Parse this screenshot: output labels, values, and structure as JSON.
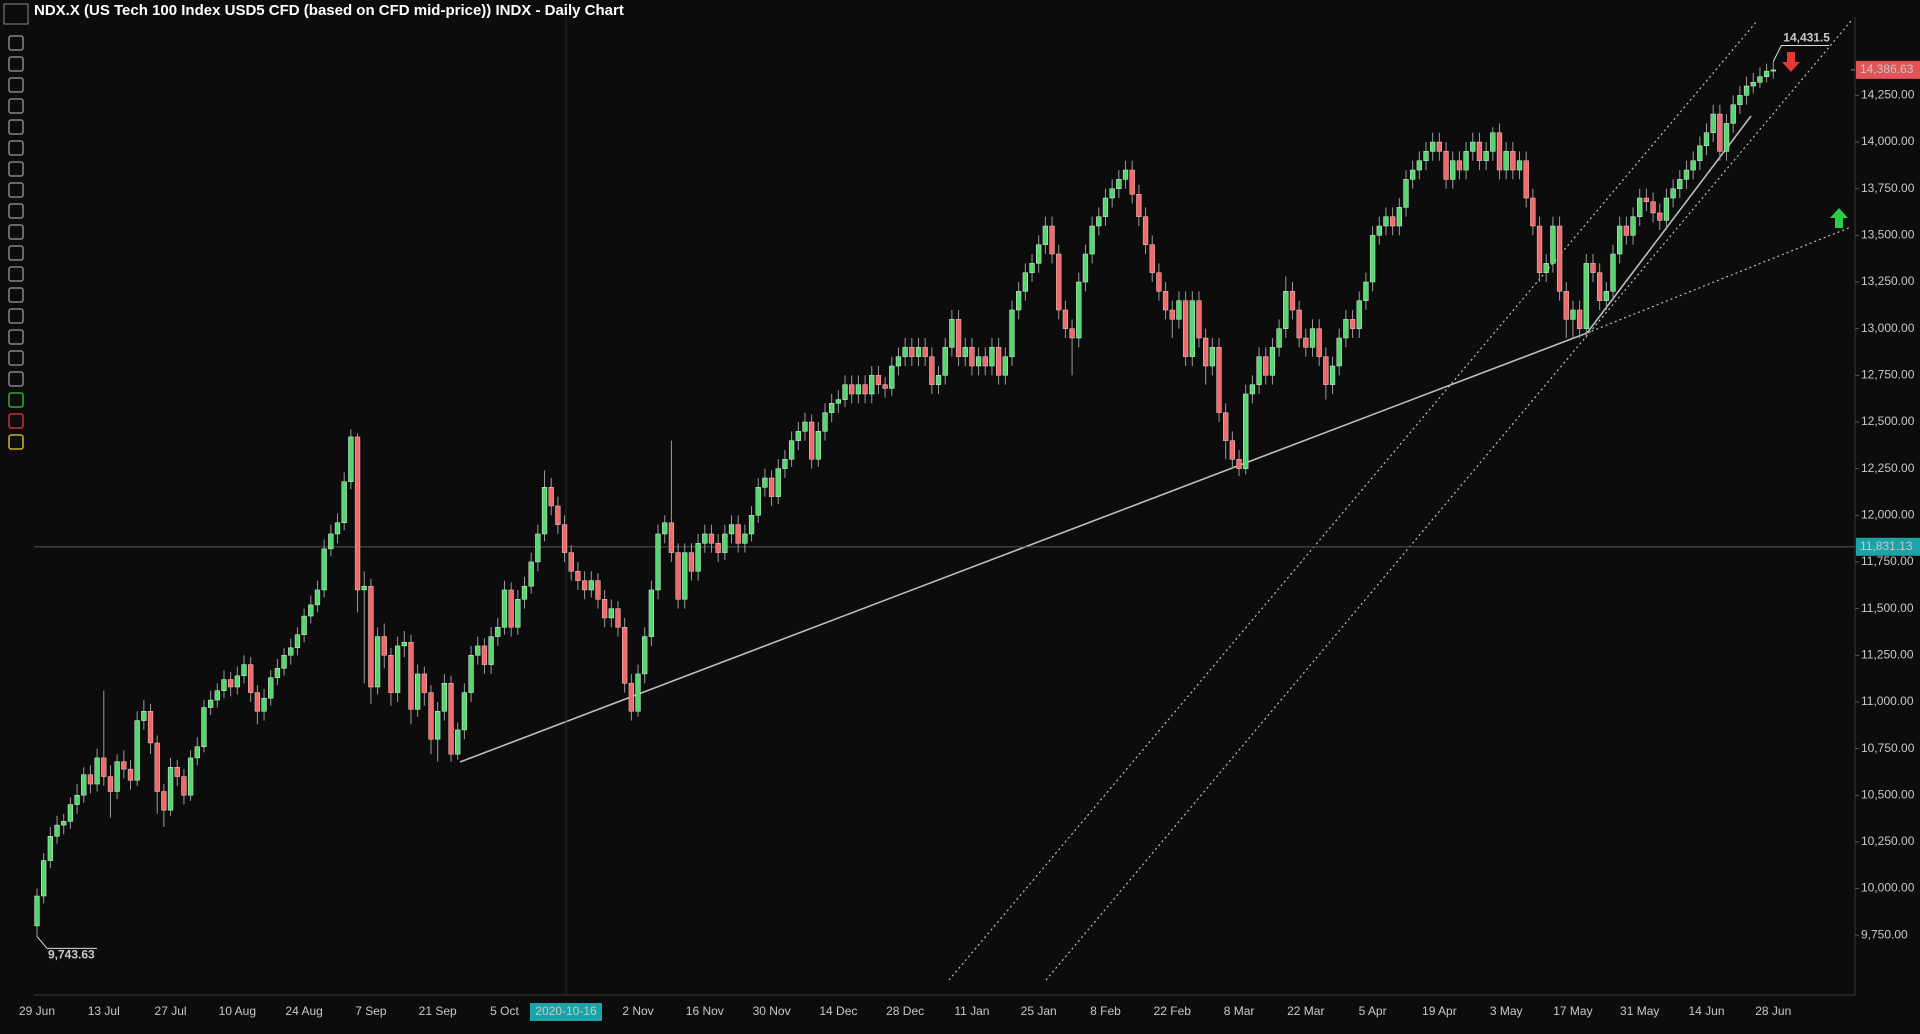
{
  "chart_data": {
    "type": "candlestick",
    "title": "NDX.X (US Tech 100 Index USD5 CFD (based on CFD mid-price)) INDX - Daily Chart",
    "categories": [
      "29 Jun",
      null,
      null,
      null,
      null,
      null,
      null,
      null,
      null,
      null,
      "13 Jul",
      null,
      null,
      null,
      null,
      null,
      null,
      null,
      null,
      null,
      "27 Jul",
      null,
      null,
      null,
      null,
      null,
      null,
      null,
      null,
      null,
      "10 Aug",
      null,
      null,
      null,
      null,
      null,
      null,
      null,
      null,
      null,
      "24 Aug",
      null,
      null,
      null,
      null,
      null,
      null,
      null,
      null,
      null,
      "7 Sep",
      null,
      null,
      null,
      null,
      null,
      null,
      null,
      null,
      null,
      "21 Sep",
      null,
      null,
      null,
      null,
      null,
      null,
      null,
      null,
      null,
      "5 Oct",
      null,
      null,
      null,
      null,
      null,
      null,
      null,
      null,
      null,
      null,
      null,
      null,
      null,
      null,
      null,
      null,
      null,
      null,
      null,
      "2 Nov",
      null,
      null,
      null,
      null,
      null,
      null,
      null,
      null,
      null,
      "16 Nov",
      null,
      null,
      null,
      null,
      null,
      null,
      null,
      null,
      null,
      "30 Nov",
      null,
      null,
      null,
      null,
      null,
      null,
      null,
      null,
      null,
      "14 Dec",
      null,
      null,
      null,
      null,
      null,
      null,
      null,
      null,
      null,
      "28 Dec",
      null,
      null,
      null,
      null,
      null,
      null,
      null,
      null,
      null,
      "11 Jan",
      null,
      null,
      null,
      null,
      null,
      null,
      null,
      null,
      null,
      "25 Jan",
      null,
      null,
      null,
      null,
      null,
      null,
      null,
      null,
      null,
      "8 Feb",
      null,
      null,
      null,
      null,
      null,
      null,
      null,
      null,
      null,
      "22 Feb",
      null,
      null,
      null,
      null,
      null,
      null,
      null,
      null,
      null,
      "8 Mar",
      null,
      null,
      null,
      null,
      null,
      null,
      null,
      null,
      null,
      "22 Mar",
      null,
      null,
      null,
      null,
      null,
      null,
      null,
      null,
      null,
      "5 Apr",
      null,
      null,
      null,
      null,
      null,
      null,
      null,
      null,
      null,
      "19 Apr",
      null,
      null,
      null,
      null,
      null,
      null,
      null,
      null,
      null,
      "3 May",
      null,
      null,
      null,
      null,
      null,
      null,
      null,
      null,
      null,
      "17 May",
      null,
      null,
      null,
      null,
      null,
      null,
      null,
      null,
      null,
      "31 May",
      null,
      null,
      null,
      null,
      null,
      null,
      null,
      null,
      null,
      "14 Jun",
      null,
      null,
      null,
      null,
      null,
      null,
      null,
      null,
      null,
      "28 Jun"
    ],
    "open": [
      9800,
      9960,
      10150,
      10280,
      10340,
      10360,
      10450,
      10500,
      10610,
      10560,
      10700,
      10600,
      10520,
      10680,
      10640,
      10580,
      10900,
      10950,
      10780,
      10520,
      10420,
      10650,
      10600,
      10500,
      10700,
      10760,
      10970,
      11010,
      11060,
      11120,
      11080,
      11140,
      11200,
      11050,
      10950,
      11020,
      11130,
      11180,
      11250,
      11290,
      11360,
      11460,
      11520,
      11600,
      11820,
      11900,
      11960,
      12180,
      12420,
      11600,
      11620,
      11080,
      11350,
      11250,
      11050,
      11300,
      11320,
      10960,
      11150,
      11050,
      10800,
      10950,
      11100,
      10720,
      10850,
      11050,
      11250,
      11300,
      11200,
      11350,
      11400,
      11600,
      11400,
      11550,
      11620,
      11750,
      11900,
      12150,
      12050,
      11950,
      11800,
      11700,
      11650,
      11600,
      11650,
      11550,
      11450,
      11500,
      11400,
      11100,
      10950,
      11150,
      11350,
      11600,
      11900,
      11960,
      11800,
      11550,
      11800,
      11700,
      11850,
      11900,
      11850,
      11800,
      11900,
      11950,
      11850,
      11900,
      12000,
      12150,
      12200,
      12100,
      12250,
      12300,
      12400,
      12450,
      12500,
      12300,
      12450,
      12550,
      12600,
      12620,
      12700,
      12650,
      12700,
      12650,
      12750,
      12700,
      12680,
      12800,
      12850,
      12900,
      12850,
      12900,
      12850,
      12700,
      12750,
      12900,
      13050,
      12850,
      12900,
      12800,
      12850,
      12800,
      12900,
      12750,
      12850,
      13100,
      13200,
      13300,
      13350,
      13450,
      13550,
      13400,
      13100,
      13000,
      12950,
      13250,
      13400,
      13550,
      13600,
      13700,
      13750,
      13800,
      13850,
      13720,
      13600,
      13450,
      13300,
      13200,
      13100,
      13050,
      13150,
      12850,
      13150,
      12950,
      12800,
      12900,
      12550,
      12400,
      12300,
      12250,
      12650,
      12700,
      12850,
      12750,
      12900,
      13000,
      13200,
      13100,
      12950,
      12900,
      13000,
      12850,
      12700,
      12800,
      12950,
      13050,
      13000,
      13150,
      13250,
      13500,
      13550,
      13600,
      13550,
      13650,
      13800,
      13850,
      13900,
      13950,
      14000,
      13950,
      13800,
      13900,
      13850,
      13950,
      14000,
      13900,
      13950,
      14050,
      13850,
      13950,
      13850,
      13900,
      13700,
      13550,
      13300,
      13350,
      13550,
      13200,
      13050,
      13100,
      13000,
      13350,
      13300,
      13150,
      13200,
      13400,
      13550,
      13500,
      13600,
      13700,
      13680,
      13620,
      13580,
      13700,
      13750,
      13800,
      13850,
      13900,
      13980,
      14050,
      14150,
      13950,
      14100,
      14200,
      14250,
      14300,
      14320,
      14350,
      14380
    ],
    "high": [
      10000,
      10190,
      10330,
      10390,
      10400,
      10490,
      10560,
      10650,
      10660,
      10750,
      11060,
      10660,
      10720,
      10740,
      10690,
      10950,
      11010,
      10990,
      10820,
      10560,
      10700,
      10690,
      10640,
      10740,
      10810,
      11010,
      11060,
      11100,
      11170,
      11160,
      11190,
      11250,
      11240,
      11090,
      11070,
      11170,
      11230,
      11290,
      11340,
      11400,
      11500,
      11570,
      11650,
      11870,
      11950,
      12010,
      12230,
      12460,
      12440,
      11700,
      11660,
      11400,
      11420,
      11290,
      11350,
      11380,
      11360,
      11200,
      11190,
      11090,
      11000,
      11150,
      11140,
      10890,
      11100,
      11300,
      11350,
      11340,
      11400,
      11450,
      11650,
      11640,
      11600,
      11670,
      11800,
      11950,
      12240,
      12200,
      12100,
      12000,
      11840,
      11750,
      11700,
      11700,
      11690,
      11600,
      11550,
      11540,
      11450,
      11150,
      11200,
      11400,
      11650,
      11950,
      12000,
      12400,
      11850,
      11850,
      11850,
      11900,
      11950,
      11950,
      11900,
      11950,
      12000,
      12000,
      11950,
      12050,
      12200,
      12250,
      12240,
      12300,
      12350,
      12450,
      12500,
      12550,
      12540,
      12500,
      12600,
      12650,
      12670,
      12750,
      12750,
      12750,
      12750,
      12800,
      12800,
      12740,
      12850,
      12900,
      12950,
      12950,
      12950,
      12950,
      12900,
      12800,
      12950,
      13100,
      13100,
      12950,
      12950,
      12900,
      12900,
      12950,
      12950,
      12900,
      13150,
      13250,
      13350,
      13400,
      13500,
      13600,
      13600,
      13450,
      13150,
      13050,
      13300,
      13450,
      13600,
      13650,
      13750,
      13800,
      13850,
      13900,
      13900,
      13770,
      13650,
      13500,
      13350,
      13250,
      13150,
      13200,
      13200,
      13200,
      13200,
      13000,
      12950,
      12950,
      12600,
      12450,
      12350,
      12700,
      12750,
      12900,
      12900,
      12950,
      13050,
      13280,
      13250,
      13150,
      13000,
      13050,
      13050,
      12900,
      12850,
      13000,
      13100,
      13100,
      13200,
      13300,
      13550,
      13600,
      13650,
      13650,
      13700,
      13850,
      13900,
      13950,
      14000,
      14050,
      14050,
      14000,
      13950,
      13950,
      14000,
      14050,
      14050,
      14000,
      14080,
      14100,
      14000,
      14000,
      13950,
      13950,
      13750,
      13600,
      13400,
      13600,
      13600,
      13250,
      13150,
      13150,
      13400,
      13400,
      13350,
      13250,
      13450,
      13600,
      13600,
      13650,
      13750,
      13750,
      13730,
      13670,
      13750,
      13800,
      13850,
      13900,
      13950,
      14030,
      14100,
      14200,
      14200,
      14150,
      14250,
      14300,
      14350,
      14370,
      14400,
      14420,
      14431.5
    ],
    "low": [
      9743.63,
      9920,
      10110,
      10240,
      10290,
      10320,
      10400,
      10460,
      10510,
      10520,
      10550,
      10380,
      10480,
      10590,
      10530,
      10550,
      10850,
      10720,
      10400,
      10330,
      10390,
      10550,
      10450,
      10470,
      10660,
      10730,
      10930,
      10970,
      11020,
      11030,
      11040,
      11100,
      11000,
      10880,
      10900,
      10980,
      11090,
      11140,
      11200,
      11250,
      11320,
      11420,
      11480,
      11560,
      11780,
      11850,
      11920,
      12140,
      11480,
      11100,
      10990,
      11040,
      11180,
      10980,
      11000,
      11240,
      10880,
      10920,
      10980,
      10720,
      10680,
      10900,
      10680,
      10690,
      10800,
      11000,
      11200,
      11150,
      11150,
      11300,
      11360,
      11350,
      11360,
      11500,
      11580,
      11700,
      11860,
      12000,
      11900,
      11750,
      11650,
      11600,
      11550,
      11560,
      11500,
      11400,
      11400,
      11350,
      11050,
      10900,
      10920,
      11100,
      11300,
      11550,
      11850,
      11750,
      11500,
      11500,
      11650,
      11650,
      11800,
      11800,
      11750,
      11760,
      11850,
      11800,
      11800,
      11860,
      11960,
      12100,
      12050,
      12060,
      12200,
      12260,
      12350,
      12400,
      12250,
      12260,
      12400,
      12500,
      12550,
      12580,
      12600,
      12600,
      12600,
      12600,
      12650,
      12630,
      12640,
      12750,
      12800,
      12800,
      12800,
      12800,
      12650,
      12650,
      12700,
      12850,
      12800,
      12800,
      12750,
      12750,
      12750,
      12750,
      12700,
      12700,
      12800,
      13050,
      13150,
      13250,
      13300,
      13400,
      13350,
      13050,
      12950,
      12750,
      12900,
      13200,
      13350,
      13500,
      13550,
      13650,
      13700,
      13750,
      13670,
      13550,
      13400,
      13250,
      13150,
      13050,
      12950,
      13000,
      12800,
      12800,
      12900,
      12700,
      12750,
      12500,
      12300,
      12250,
      12210,
      12220,
      12600,
      12650,
      12700,
      12700,
      12850,
      12950,
      13050,
      12900,
      12850,
      12850,
      12800,
      12620,
      12650,
      12750,
      12900,
      12950,
      12950,
      13100,
      13200,
      13450,
      13500,
      13500,
      13500,
      13600,
      13750,
      13800,
      13850,
      13900,
      13900,
      13750,
      13750,
      13800,
      13800,
      13900,
      13850,
      13850,
      13900,
      13800,
      13800,
      13800,
      13800,
      13650,
      13500,
      13250,
      13250,
      13300,
      13150,
      12950,
      12950,
      12950,
      12950,
      13250,
      13100,
      13100,
      13150,
      13350,
      13450,
      13450,
      13550,
      13630,
      13570,
      13530,
      13530,
      13650,
      13700,
      13750,
      13800,
      13850,
      13930,
      14000,
      13900,
      13900,
      14050,
      14150,
      14200,
      14260,
      14290,
      14320,
      14340
    ],
    "close": [
      9960,
      10150,
      10280,
      10340,
      10360,
      10450,
      10500,
      10610,
      10560,
      10700,
      10600,
      10520,
      10680,
      10640,
      10580,
      10900,
      10950,
      10780,
      10520,
      10420,
      10650,
      10600,
      10500,
      10700,
      10760,
      10970,
      11010,
      11060,
      11120,
      11080,
      11140,
      11200,
      11050,
      10950,
      11020,
      11130,
      11180,
      11250,
      11290,
      11360,
      11460,
      11520,
      11600,
      11820,
      11900,
      11960,
      12180,
      12420,
      11600,
      11620,
      11080,
      11350,
      11250,
      11050,
      11300,
      11320,
      10960,
      11150,
      11050,
      10800,
      10950,
      11100,
      10720,
      10850,
      11050,
      11250,
      11300,
      11200,
      11350,
      11400,
      11600,
      11400,
      11550,
      11620,
      11750,
      11900,
      12150,
      12050,
      11950,
      11800,
      11700,
      11650,
      11600,
      11650,
      11550,
      11450,
      11500,
      11400,
      11100,
      10950,
      11150,
      11350,
      11600,
      11900,
      11960,
      11800,
      11550,
      11800,
      11700,
      11850,
      11900,
      11850,
      11800,
      11900,
      11950,
      11850,
      11900,
      12000,
      12150,
      12200,
      12100,
      12250,
      12300,
      12400,
      12450,
      12500,
      12300,
      12450,
      12550,
      12600,
      12620,
      12700,
      12650,
      12700,
      12650,
      12750,
      12700,
      12680,
      12800,
      12850,
      12900,
      12850,
      12900,
      12850,
      12700,
      12750,
      12900,
      13050,
      12850,
      12900,
      12800,
      12850,
      12800,
      12900,
      12750,
      12850,
      13100,
      13200,
      13300,
      13350,
      13450,
      13550,
      13400,
      13100,
      13000,
      12950,
      13250,
      13400,
      13550,
      13600,
      13700,
      13750,
      13800,
      13850,
      13720,
      13600,
      13450,
      13300,
      13200,
      13100,
      13050,
      13150,
      12850,
      13150,
      12950,
      12800,
      12900,
      12550,
      12400,
      12300,
      12250,
      12650,
      12700,
      12850,
      12750,
      12900,
      13000,
      13200,
      13100,
      12950,
      12900,
      13000,
      12850,
      12700,
      12800,
      12950,
      13050,
      13000,
      13150,
      13250,
      13500,
      13550,
      13600,
      13550,
      13650,
      13800,
      13850,
      13900,
      13950,
      14000,
      13950,
      13800,
      13900,
      13850,
      13950,
      14000,
      13900,
      13950,
      14050,
      13850,
      13950,
      13850,
      13900,
      13700,
      13550,
      13300,
      13350,
      13550,
      13200,
      13050,
      13100,
      13000,
      13350,
      13300,
      13150,
      13200,
      13400,
      13550,
      13500,
      13600,
      13700,
      13680,
      13620,
      13580,
      13700,
      13750,
      13800,
      13850,
      13900,
      13980,
      14050,
      14150,
      13950,
      14100,
      14200,
      14250,
      14300,
      14320,
      14350,
      14380,
      14386.63
    ],
    "up_color": "#55d66f",
    "down_color": "#ef6b6b",
    "ylim": [
      9435,
      14670
    ],
    "yticks": [
      {
        "value": 9750,
        "label": "9,750.00"
      },
      {
        "value": 10000,
        "label": "10,000.00"
      },
      {
        "value": 10250,
        "label": "10,250.00"
      },
      {
        "value": 10500,
        "label": "10,500.00"
      },
      {
        "value": 10750,
        "label": "10,750.00"
      },
      {
        "value": 11000,
        "label": "11,000.00"
      },
      {
        "value": 11250,
        "label": "11,250.00"
      },
      {
        "value": 11500,
        "label": "11,500.00"
      },
      {
        "value": 11750,
        "label": "11,750.00"
      },
      {
        "value": 12000,
        "label": "12,000.00"
      },
      {
        "value": 12250,
        "label": "12,250.00"
      },
      {
        "value": 12500,
        "label": "12,500.00"
      },
      {
        "value": 12750,
        "label": "12,750.00"
      },
      {
        "value": 13000,
        "label": "13,000.00"
      },
      {
        "value": 13250,
        "label": "13,250.00"
      },
      {
        "value": 13500,
        "label": "13,500.00"
      },
      {
        "value": 13750,
        "label": "13,750.00"
      },
      {
        "value": 14000,
        "label": "14,000.00"
      },
      {
        "value": 14250,
        "label": "14,250.00"
      }
    ],
    "last_price": {
      "value": 14386.63,
      "label": "14,386.63"
    },
    "crosshair": {
      "date": "2020-10-16",
      "price": {
        "value": 11831.13,
        "label": "11,831.13"
      }
    },
    "high_annotation": {
      "value": 14431.5,
      "label": "14,431.5"
    },
    "low_annotation": {
      "value": 9743.63,
      "label": "9,743.63"
    }
  }
}
